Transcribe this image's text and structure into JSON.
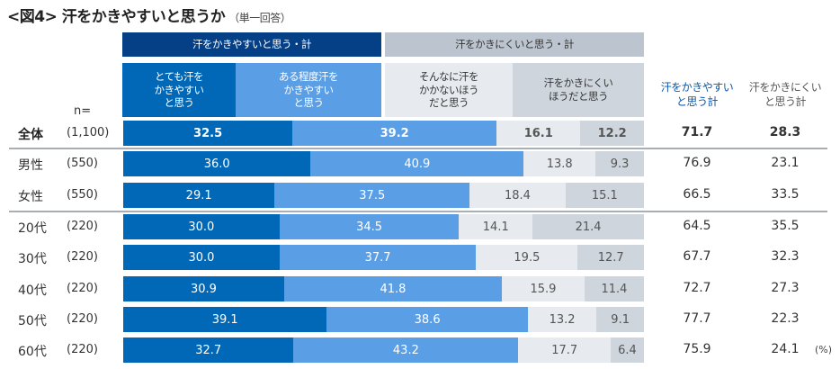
{
  "title": "<図4> 汗をかきやすいと思うか",
  "title_note": "（単一回答）",
  "header": {
    "group_easy": "汗をかきやすいと思う・計",
    "group_hard": "汗をかきにくいと思う・計",
    "categories": [
      "とても汗を\nかきやすい\nと思う",
      "ある程度汗を\nかきやすい\nと思う",
      "そんなに汗を\nかかないほう\nだと思う",
      "汗をかきにくい\nほうだと思う"
    ],
    "total_easy": "汗をかきやすい\nと思う計",
    "total_hard": "汗をかきにくい\nと思う計",
    "n_label": "n="
  },
  "unit_label": "(%)",
  "colors": {
    "very_easy": "#0068b7",
    "somewhat_easy": "#5a9fe6",
    "not_much": "#e7eaee",
    "hard": "#ced5dd",
    "group_easy": "#053f86",
    "group_hard": "#bcc5cf"
  },
  "chart_data": {
    "type": "bar",
    "orientation": "horizontal-stacked-100",
    "title": "<図4> 汗をかきやすいと思うか（単一回答）",
    "xlabel": "",
    "ylabel": "",
    "unit": "%",
    "xlim": [
      0,
      100
    ],
    "legend": "top",
    "categories": [
      "全体",
      "男性",
      "女性",
      "20代",
      "30代",
      "40代",
      "50代",
      "60代"
    ],
    "n": [
      "(1,100)",
      "(550)",
      "(550)",
      "(220)",
      "(220)",
      "(220)",
      "(220)",
      "(220)"
    ],
    "series": [
      {
        "name": "とても汗をかきやすいと思う",
        "values": [
          32.5,
          36.0,
          29.1,
          30.0,
          30.0,
          30.9,
          39.1,
          32.7
        ]
      },
      {
        "name": "ある程度汗をかきやすいと思う",
        "values": [
          39.2,
          40.9,
          37.5,
          34.5,
          37.7,
          41.8,
          38.6,
          43.2
        ]
      },
      {
        "name": "そんなに汗をかかないほうだと思う",
        "values": [
          16.1,
          13.8,
          18.4,
          14.1,
          19.5,
          15.9,
          13.2,
          17.7
        ]
      },
      {
        "name": "汗をかきにくいほうだと思う",
        "values": [
          12.2,
          9.3,
          15.1,
          21.4,
          12.7,
          11.4,
          9.1,
          6.4
        ]
      }
    ],
    "totals": {
      "汗をかきやすいと思う計": [
        71.7,
        76.9,
        66.5,
        64.5,
        67.7,
        72.7,
        77.7,
        75.9
      ],
      "汗をかきにくいと思う計": [
        28.3,
        23.1,
        33.5,
        35.5,
        32.3,
        27.3,
        22.3,
        24.1
      ]
    },
    "values_display": [
      [
        "32.5",
        "39.2",
        "16.1",
        "12.2"
      ],
      [
        "36.0",
        "40.9",
        "13.8",
        "9.3"
      ],
      [
        "29.1",
        "37.5",
        "18.4",
        "15.1"
      ],
      [
        "30.0",
        "34.5",
        "14.1",
        "21.4"
      ],
      [
        "30.0",
        "37.7",
        "19.5",
        "12.7"
      ],
      [
        "30.9",
        "41.8",
        "15.9",
        "11.4"
      ],
      [
        "39.1",
        "38.6",
        "13.2",
        "9.1"
      ],
      [
        "32.7",
        "43.2",
        "17.7",
        "6.4"
      ]
    ],
    "totals_display": [
      [
        "71.7",
        "28.3"
      ],
      [
        "76.9",
        "23.1"
      ],
      [
        "66.5",
        "33.5"
      ],
      [
        "64.5",
        "35.5"
      ],
      [
        "67.7",
        "32.3"
      ],
      [
        "72.7",
        "27.3"
      ],
      [
        "77.7",
        "22.3"
      ],
      [
        "75.9",
        "24.1"
      ]
    ],
    "highlight_row": "全体"
  }
}
